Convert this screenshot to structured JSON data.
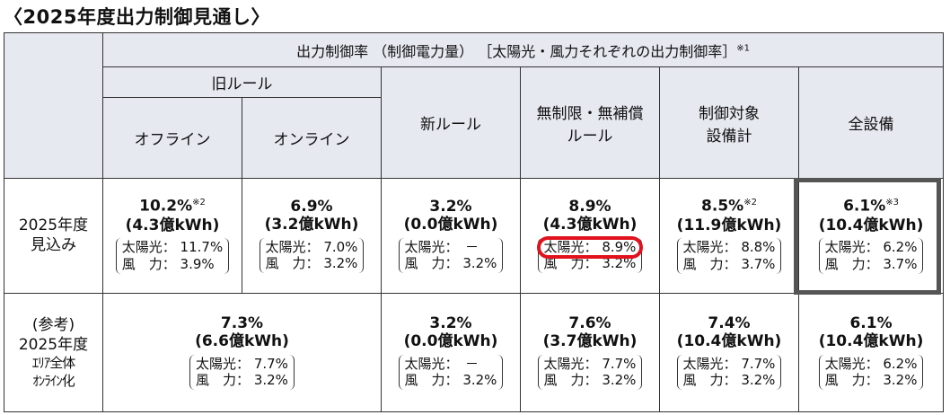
{
  "title": "〈2025年度出力制御見通し〉",
  "header": {
    "main": "出力制御率 （制御電力量） ［太陽光・風力それぞれの出力制御率］",
    "main_note": "※1",
    "old_rule": "旧ルール",
    "offline": "オフライン",
    "online": "オンライン",
    "new_rule": "新ルール",
    "unlimited": [
      "無制限・無補償",
      "ルール"
    ],
    "control_total": [
      "制御対象",
      "設備計"
    ],
    "all": "全設備"
  },
  "row1": {
    "label": [
      "2025年度",
      "見込み"
    ],
    "cells": [
      {
        "pct": "10.2%",
        "note": "※2",
        "kwh": "(4.3億kWh)",
        "solar": "太陽光： 11.7%",
        "wind": "風　力： 3.9%"
      },
      {
        "pct": "6.9%",
        "note": "",
        "kwh": "(3.2億kWh)",
        "solar": "太陽光： 7.0%",
        "wind": "風　力： 3.2%"
      },
      {
        "pct": "3.2%",
        "note": "",
        "kwh": "(0.0億kWh)",
        "solar": "太陽光：　－",
        "wind": "風　力： 3.2%"
      },
      {
        "pct": "8.9%",
        "note": "",
        "kwh": "(4.3億kWh)",
        "solar": "太陽光： 8.9%",
        "wind": "風　力： 3.2%"
      },
      {
        "pct": "8.5%",
        "note": "※2",
        "kwh": "(11.9億kWh)",
        "solar": "太陽光： 8.8%",
        "wind": "風　力： 3.7%"
      },
      {
        "pct": "6.1%",
        "note": "※3",
        "kwh": "(10.4億kWh)",
        "solar": "太陽光： 6.2%",
        "wind": "風　力： 3.7%"
      }
    ]
  },
  "row2": {
    "label": [
      "(参考)",
      "2025年度",
      "ｴﾘｱ全体",
      "ｵﾝﾗｲﾝ化"
    ],
    "cells": [
      {
        "pct": "7.3%",
        "kwh": "(6.6億kWh)",
        "solar": "太陽光： 7.7%",
        "wind": "風　力： 3.2%"
      },
      {
        "pct": "3.2%",
        "kwh": "(0.0億kWh)",
        "solar": "太陽光：　－",
        "wind": "風　力： 3.2%"
      },
      {
        "pct": "7.6%",
        "kwh": "(3.7億kWh)",
        "solar": "太陽光： 7.7%",
        "wind": "風　力： 3.2%"
      },
      {
        "pct": "7.4%",
        "kwh": "(10.4億kWh)",
        "solar": "太陽光： 7.7%",
        "wind": "風　力： 3.2%"
      },
      {
        "pct": "6.1%",
        "kwh": "(10.4億kWh)",
        "solar": "太陽光： 6.2%",
        "wind": "風　力： 3.2%"
      }
    ]
  },
  "colors": {
    "header_bg": "#e7e9f1",
    "highlight_red": "#e1121c",
    "highlight_box": "#555555"
  }
}
